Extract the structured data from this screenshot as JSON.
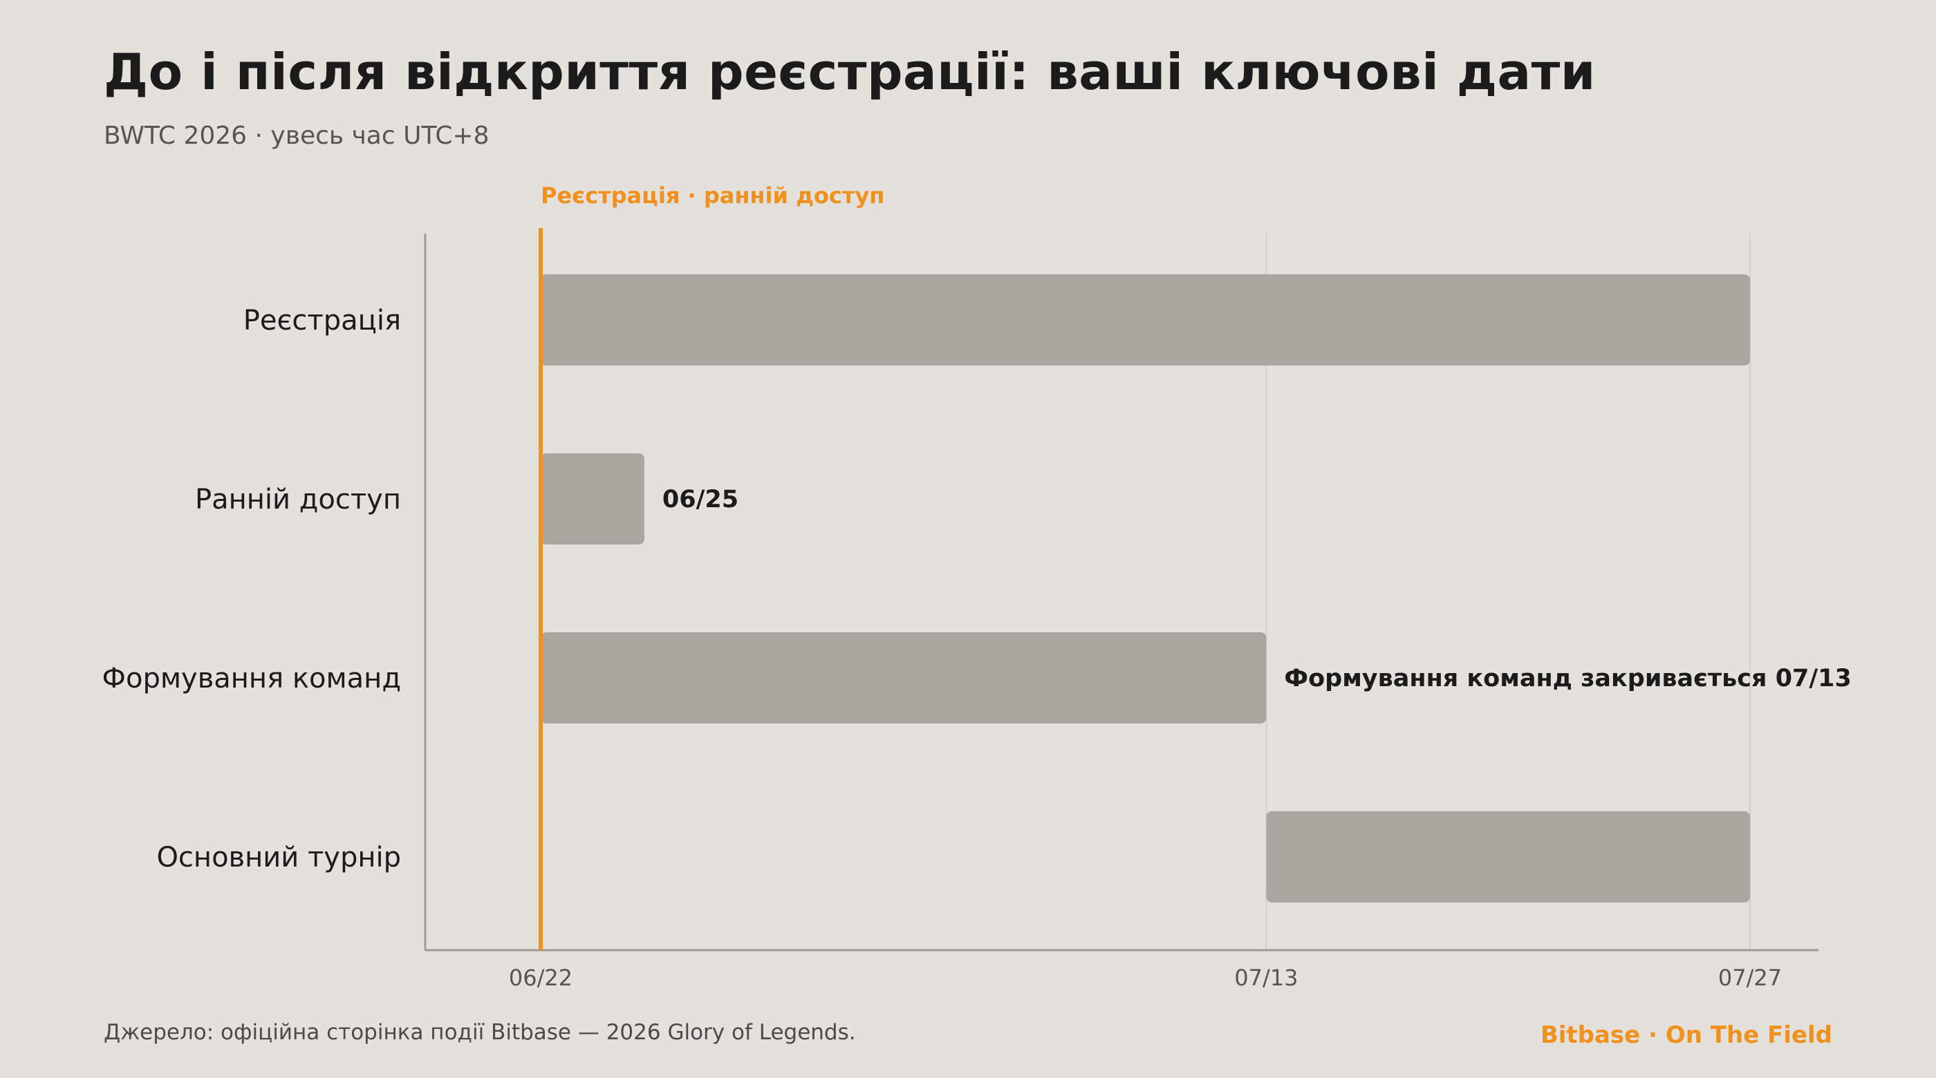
{
  "header": {
    "title": "До і після відкриття реєстрації: ваші ключові дати",
    "subtitle": "BWTC 2026 · увесь час UTC+8"
  },
  "footer": {
    "source": "Джерело: офіційна сторінка події Bitbase — 2026 Glory of Legends.",
    "brand": "Bitbase · On The Field"
  },
  "colors": {
    "background": "#e4e0db",
    "bar": "#aaa59f",
    "accent": "#f0911e",
    "text": "#1b1b1b",
    "axis": "#9d9994",
    "grid": "#d3cfca"
  },
  "chart_data": {
    "type": "gantt",
    "title": "До і після відкриття реєстрації: ваші ключові дати",
    "subtitle": "BWTC 2026 · увесь час UTC+8",
    "xlim": [
      "2026-06-17",
      "2026-07-30"
    ],
    "x_ticks": [
      {
        "date": "2026-06-22",
        "label": "06/22"
      },
      {
        "date": "2026-07-13",
        "label": "07/13"
      },
      {
        "date": "2026-07-27",
        "label": "07/27"
      }
    ],
    "rows": [
      {
        "label": "Реєстрація",
        "start": "2026-06-22",
        "end": "2026-07-27",
        "annotation": ""
      },
      {
        "label": "Ранній доступ",
        "start": "2026-06-22",
        "end": "2026-06-25",
        "annotation": "06/25"
      },
      {
        "label": "Формування команд",
        "start": "2026-06-22",
        "end": "2026-07-13",
        "annotation": "Формування команд закривається 07/13"
      },
      {
        "label": "Основний турнір",
        "start": "2026-07-13",
        "end": "2026-07-27",
        "annotation": ""
      }
    ],
    "marker": {
      "date": "2026-06-22",
      "label": "Реєстрація · ранній доступ"
    },
    "grid": true,
    "legend": "none"
  }
}
